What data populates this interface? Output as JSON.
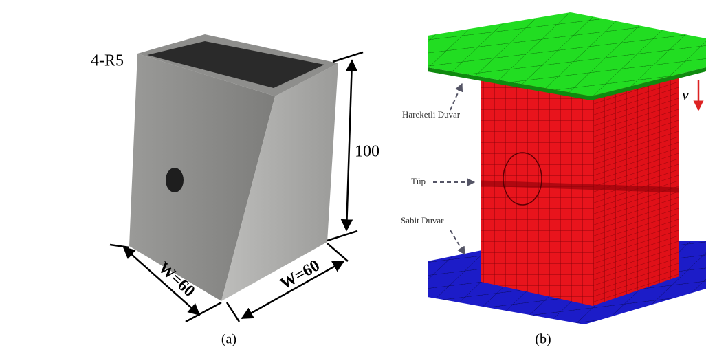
{
  "panel_a": {
    "corner_radius_label": "4-R5",
    "height_label": "100",
    "width_left_label": "W=60",
    "width_right_label": "W=60",
    "caption": "(a)"
  },
  "panel_b": {
    "moving_wall_label": "Hareketli Duvar",
    "tube_label": "Tüp",
    "fixed_wall_label": "Sabit Duvar",
    "velocity_label": "v",
    "caption": "(b)"
  }
}
